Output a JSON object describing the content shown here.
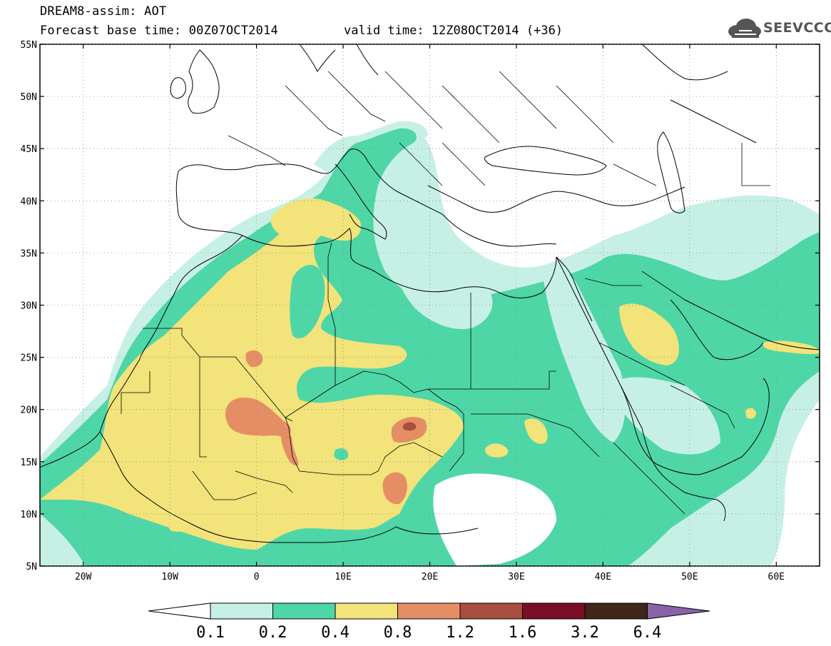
{
  "header": {
    "title": "DREAM8-assim: AOT",
    "base_time": "Forecast base time: 00Z07OCT2014",
    "valid_time": "valid time: 12Z08OCT2014 (+36)",
    "logo_text": "SEEVCCC"
  },
  "map": {
    "lon_range": [
      -25,
      65
    ],
    "lat_range": [
      5,
      55
    ],
    "lon_ticks": [
      {
        "value": -20,
        "label": "20W"
      },
      {
        "value": -10,
        "label": "10W"
      },
      {
        "value": 0,
        "label": "0"
      },
      {
        "value": 10,
        "label": "10E"
      },
      {
        "value": 20,
        "label": "20E"
      },
      {
        "value": 30,
        "label": "30E"
      },
      {
        "value": 40,
        "label": "40E"
      },
      {
        "value": 50,
        "label": "50E"
      },
      {
        "value": 60,
        "label": "60E"
      }
    ],
    "lat_ticks": [
      {
        "value": 55,
        "label": "55N"
      },
      {
        "value": 50,
        "label": "50N"
      },
      {
        "value": 45,
        "label": "45N"
      },
      {
        "value": 40,
        "label": "40N"
      },
      {
        "value": 35,
        "label": "35N"
      },
      {
        "value": 30,
        "label": "30N"
      },
      {
        "value": 25,
        "label": "25N"
      },
      {
        "value": 20,
        "label": "20N"
      },
      {
        "value": 15,
        "label": "15N"
      },
      {
        "value": 10,
        "label": "10N"
      },
      {
        "value": 5,
        "label": "5N"
      }
    ]
  },
  "colorbar": {
    "levels": [
      "0.1",
      "0.2",
      "0.4",
      "0.8",
      "1.2",
      "1.6",
      "3.2",
      "6.4"
    ],
    "colors": [
      "#ffffff",
      "#c6f0e6",
      "#4fd6a6",
      "#f2e37a",
      "#e58e66",
      "#a84e40",
      "#7a0e26",
      "#3e2618",
      "#8a62a8"
    ]
  },
  "colors": {
    "low": "#c6f0e6",
    "mid": "#4fd6a6",
    "high": "#f2e37a",
    "higher": "#e58e66",
    "peak": "#a84e40"
  }
}
